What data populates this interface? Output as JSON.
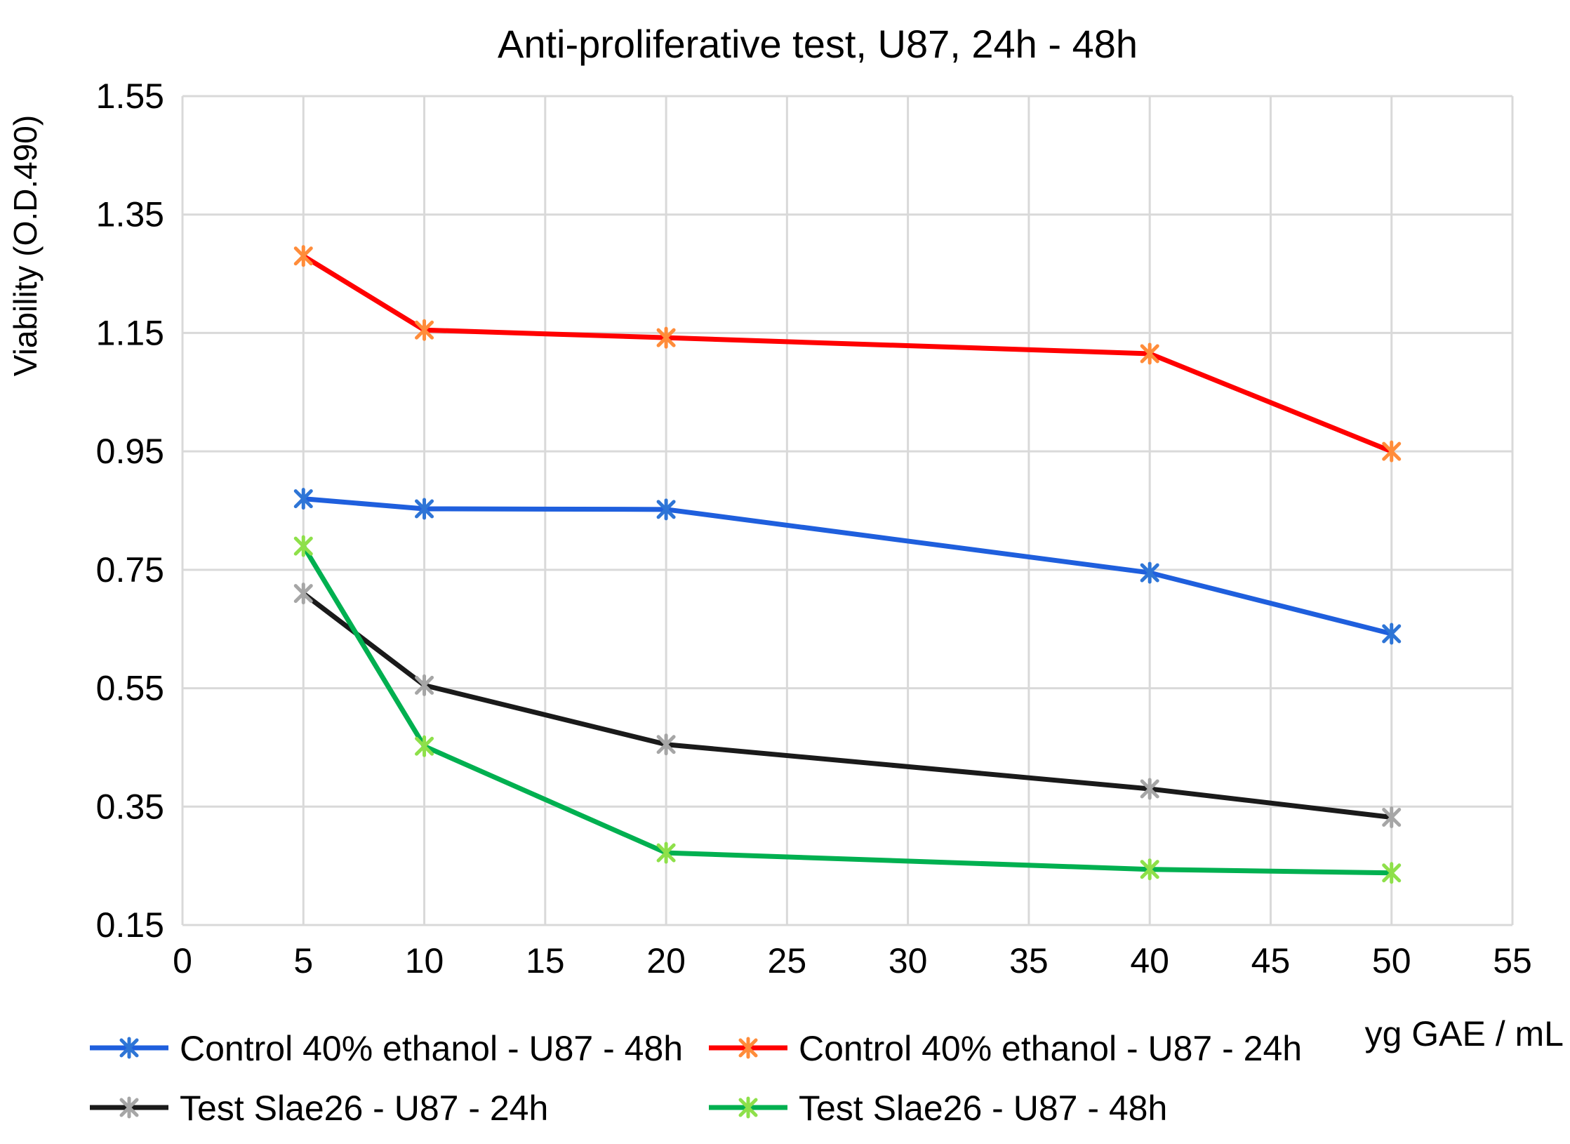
{
  "chart_data": {
    "type": "line",
    "title": "Anti-proliferative test, U87, 24h - 48h",
    "xlabel": "yg GAE / mL",
    "ylabel": "Viability (O.D.490)",
    "xlim": [
      0,
      55
    ],
    "ylim": [
      0.15,
      1.55
    ],
    "x_ticks": [
      0,
      5,
      10,
      15,
      20,
      25,
      30,
      35,
      40,
      45,
      50,
      55
    ],
    "y_ticks": [
      0.15,
      0.35,
      0.55,
      0.75,
      0.95,
      1.15,
      1.35,
      1.55
    ],
    "y_tick_labels": [
      "0.15",
      "0.35",
      "0.55",
      "0.75",
      "0.95",
      "1.15",
      "1.35",
      "1.55"
    ],
    "grid": true,
    "legend_position": "bottom",
    "series": [
      {
        "name": "Control 40% ethanol - U87 - 48h",
        "line_color": "#1f5fdd",
        "marker_color": "#2e75d6",
        "x": [
          5,
          10,
          20,
          40,
          50
        ],
        "y": [
          0.87,
          0.853,
          0.852,
          0.745,
          0.642
        ]
      },
      {
        "name": "Control 40% ethanol - U87 - 24h",
        "line_color": "#ff0000",
        "marker_color": "#ff8c3a",
        "x": [
          5,
          10,
          20,
          40,
          50
        ],
        "y": [
          1.28,
          1.155,
          1.142,
          1.115,
          0.95
        ]
      },
      {
        "name": "Test Slae26 - U87 - 24h",
        "line_color": "#1a1a1a",
        "marker_color": "#a6a6a6",
        "x": [
          5,
          10,
          20,
          40,
          50
        ],
        "y": [
          0.71,
          0.555,
          0.455,
          0.38,
          0.332
        ]
      },
      {
        "name": "Test Slae26 - U87 - 48h",
        "line_color": "#00b050",
        "marker_color": "#8ee04a",
        "x": [
          5,
          10,
          20,
          40,
          50
        ],
        "y": [
          0.79,
          0.452,
          0.272,
          0.244,
          0.238
        ]
      }
    ]
  }
}
